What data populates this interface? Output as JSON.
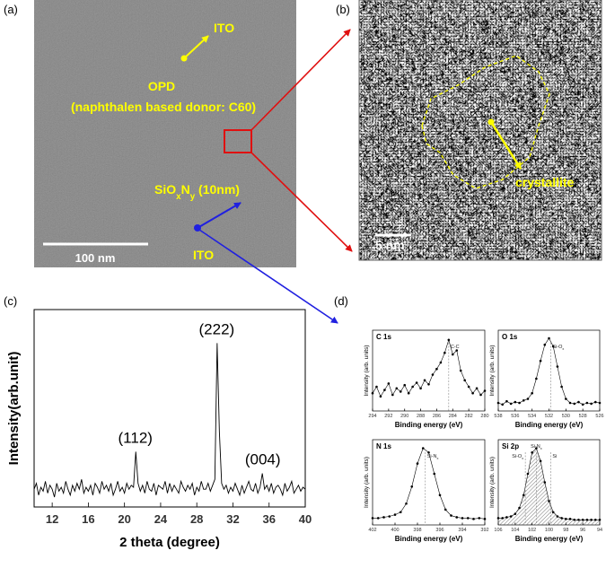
{
  "panel_labels": [
    "(a)",
    "(b)",
    "(c)",
    "(d)"
  ],
  "tem": {
    "top_layer": "ITO",
    "layer": "OPD",
    "layer_detail": "(naphthalen based donor: C60)",
    "interlayer": [
      "SiO",
      "x",
      "N",
      "y",
      " (10nm)"
    ],
    "bottom_layer": "ITO",
    "scale_bar": "100 nm"
  },
  "hrtem": {
    "feature": "crystallite",
    "scale_bar": "5 nm"
  },
  "chart_data": [
    {
      "type": "line",
      "xlabel": "2 theta (degree)",
      "ylabel": "Intensity(arb.unit)",
      "color": "#000000",
      "markers": false,
      "xlim": [
        10,
        40
      ],
      "ylim": [
        0,
        100
      ],
      "xticks": [
        12,
        16,
        20,
        24,
        28,
        32,
        36,
        40
      ],
      "annotations": [
        {
          "text": "(112)",
          "x": 21.2
        },
        {
          "text": "(222)",
          "x": 30.2
        },
        {
          "text": "(004)",
          "x": 35.3
        }
      ],
      "x": [
        10,
        10.25,
        10.5,
        10.75,
        11,
        11.25,
        11.5,
        11.75,
        12,
        12.25,
        12.5,
        12.75,
        13,
        13.25,
        13.5,
        13.75,
        14,
        14.25,
        14.5,
        14.75,
        15,
        15.25,
        15.5,
        15.75,
        16,
        16.25,
        16.5,
        16.75,
        17,
        17.25,
        17.5,
        17.75,
        18,
        18.25,
        18.5,
        18.75,
        19,
        19.25,
        19.5,
        19.75,
        20,
        20.25,
        20.5,
        20.75,
        21,
        21.25,
        21.5,
        21.75,
        22,
        22.25,
        22.5,
        22.75,
        23,
        23.25,
        23.5,
        23.75,
        24,
        24.25,
        24.5,
        24.75,
        25,
        25.25,
        25.5,
        25.75,
        26,
        26.25,
        26.5,
        26.75,
        27,
        27.25,
        27.5,
        27.75,
        28,
        28.25,
        28.5,
        28.75,
        29,
        29.25,
        29.5,
        29.75,
        30,
        30.25,
        30.5,
        30.75,
        31,
        31.25,
        31.5,
        31.75,
        32,
        32.25,
        32.5,
        32.75,
        33,
        33.25,
        33.5,
        33.75,
        34,
        34.25,
        34.5,
        34.75,
        35,
        35.25,
        35.5,
        35.75,
        36,
        36.25,
        36.5,
        36.75,
        37,
        37.25,
        37.5,
        37.75,
        38,
        38.25,
        38.5,
        38.75,
        39,
        39.25,
        39.5,
        39.75,
        40
      ],
      "values": [
        9,
        12,
        6,
        10,
        8,
        13,
        7,
        11,
        9,
        5,
        12,
        8,
        10,
        7,
        13,
        9,
        6,
        11,
        8,
        12,
        9,
        14,
        7,
        10,
        8,
        11,
        6,
        12,
        10,
        7,
        13,
        9,
        11,
        8,
        12,
        6,
        9,
        13,
        8,
        10,
        7,
        12,
        9,
        11,
        10,
        28,
        12,
        8,
        11,
        7,
        13,
        9,
        8,
        12,
        6,
        11,
        10,
        9,
        13,
        7,
        12,
        8,
        11,
        9,
        7,
        13,
        10,
        8,
        11,
        9,
        12,
        6,
        10,
        8,
        13,
        9,
        9,
        12,
        8,
        11,
        14,
        83,
        38,
        12,
        9,
        11,
        7,
        10,
        8,
        12,
        9,
        6,
        11,
        7,
        10,
        13,
        9,
        8,
        12,
        7,
        10,
        17,
        9,
        11,
        8,
        12,
        7,
        10,
        11,
        9,
        6,
        12,
        8,
        10,
        13,
        7,
        9,
        11,
        8,
        10,
        9
      ]
    },
    {
      "type": "line",
      "title": "C 1s",
      "xlabel": "Binding energy (eV)",
      "ylabel": "Intensity (arb. units)",
      "color": "#000000",
      "markers": true,
      "xlim": [
        294,
        280
      ],
      "ylim": [
        0,
        100
      ],
      "xticks": [
        294,
        292,
        290,
        288,
        286,
        284,
        282,
        280
      ],
      "refs": [
        {
          "label": [
            "C-C"
          ],
          "x": 284.5
        }
      ],
      "x": [
        294,
        293.5,
        293,
        292.5,
        292,
        291.5,
        291,
        290.5,
        290,
        289.5,
        289,
        288.5,
        288,
        287.5,
        287,
        286.5,
        286,
        285.5,
        285,
        284.5,
        284,
        283.5,
        283,
        282.5,
        282,
        281.5,
        281,
        280.5,
        280
      ],
      "values": [
        22,
        30,
        18,
        26,
        34,
        20,
        28,
        24,
        32,
        22,
        30,
        35,
        28,
        38,
        33,
        45,
        52,
        60,
        72,
        88,
        70,
        75,
        50,
        38,
        30,
        22,
        28,
        20,
        25
      ]
    },
    {
      "type": "line",
      "title": "O 1s",
      "xlabel": "Binding energy (eV)",
      "ylabel": "Intensity (arb. units)",
      "color": "#000000",
      "markers": true,
      "xlim": [
        538,
        526
      ],
      "ylim": [
        0,
        100
      ],
      "xticks": [
        538,
        536,
        534,
        532,
        530,
        528,
        526
      ],
      "refs": [
        {
          "label": [
            "Si-O",
            "x"
          ],
          "x": 531.8
        }
      ],
      "x": [
        538,
        537.5,
        537,
        536.5,
        536,
        535.5,
        535,
        534.5,
        534,
        533.5,
        533,
        532.5,
        532,
        531.5,
        531,
        530.5,
        530,
        529.5,
        529,
        528.5,
        528,
        527.5,
        527,
        526.5,
        526
      ],
      "values": [
        10,
        8,
        12,
        9,
        11,
        10,
        13,
        15,
        22,
        40,
        62,
        82,
        90,
        80,
        55,
        30,
        15,
        10,
        9,
        11,
        8,
        10,
        9,
        11,
        10
      ]
    },
    {
      "type": "line",
      "title": "N 1s",
      "xlabel": "Binding energy (eV)",
      "ylabel": "Intensity (arb. units)",
      "color": "#000000",
      "markers": true,
      "xlim": [
        402,
        392
      ],
      "ylim": [
        0,
        100
      ],
      "xticks": [
        402,
        400,
        398,
        396,
        394,
        392
      ],
      "refs": [
        {
          "label": [
            "Si-N",
            "x"
          ],
          "x": 397.3
        }
      ],
      "x": [
        402,
        401.5,
        401,
        400.5,
        400,
        399.5,
        399,
        398.5,
        398,
        397.5,
        397,
        396.5,
        396,
        395.5,
        395,
        394.5,
        394,
        393.5,
        393,
        392.5,
        392
      ],
      "values": [
        8,
        8,
        9,
        10,
        12,
        15,
        25,
        45,
        72,
        90,
        85,
        60,
        35,
        18,
        11,
        9,
        8,
        8,
        7,
        8,
        7
      ]
    },
    {
      "type": "line",
      "title": "Si 2p",
      "xlabel": "Binding energy (eV)",
      "ylabel": "Intensity (arb. units)",
      "color": "#000000",
      "markers": true,
      "hatched": true,
      "xlim": [
        106,
        94
      ],
      "ylim": [
        0,
        100
      ],
      "xticks": [
        106,
        104,
        102,
        100,
        98,
        96,
        94
      ],
      "refs": [
        {
          "label": [
            "Si-O",
            "x"
          ],
          "x": 102.8
        },
        {
          "label": [
            "Si-N",
            "x"
          ],
          "x": 101.5
        },
        {
          "label": [
            "Si"
          ],
          "x": 99.8
        }
      ],
      "x": [
        106,
        105.5,
        105,
        104.5,
        104,
        103.5,
        103,
        102.5,
        102,
        101.5,
        101,
        100.5,
        100,
        99.5,
        99,
        98.5,
        98,
        97.5,
        97,
        96.5,
        96,
        95.5,
        95,
        94.5,
        94
      ],
      "values": [
        8,
        8,
        9,
        10,
        13,
        20,
        35,
        60,
        85,
        90,
        75,
        50,
        28,
        15,
        10,
        8,
        7,
        7,
        6,
        6,
        6,
        6,
        6,
        6,
        6
      ]
    }
  ]
}
